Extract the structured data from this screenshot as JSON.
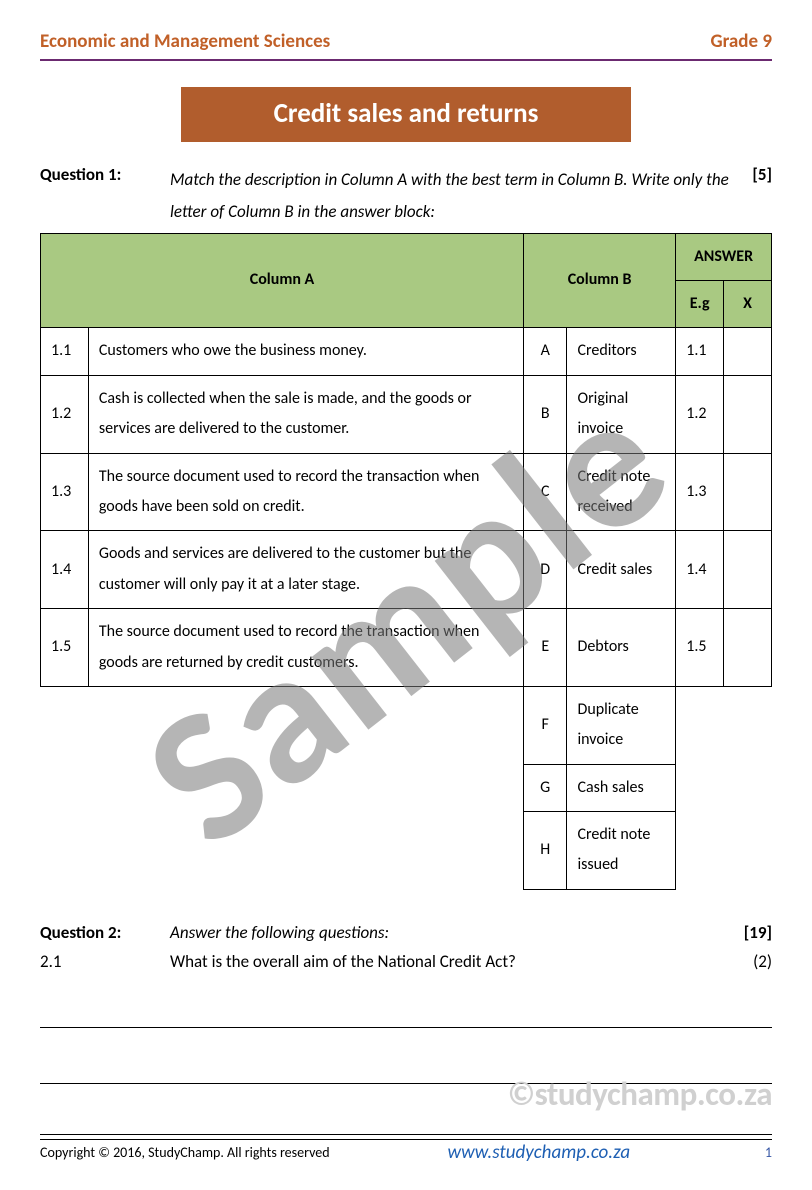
{
  "header": {
    "subject": "Economic and Management Sciences",
    "grade": "Grade 9"
  },
  "title": "Credit sales and returns",
  "question1": {
    "label": "Question 1:",
    "instruction": "Match the description in Column A with the best term in Column B. Write only the letter of Column B in the answer block:",
    "marks": "[5]",
    "header_colA": "Column A",
    "header_colB": "Column B",
    "header_answer": "ANSWER",
    "header_eg": "E.g",
    "header_eg_val": "X",
    "rows": [
      {
        "num": "1.1",
        "desc": "Customers who owe the business money.",
        "letter": "A",
        "term": "Creditors",
        "ans_a": "1.1",
        "ans_b": ""
      },
      {
        "num": "1.2",
        "desc": "Cash is collected when the sale is made, and the goods or services are delivered to the customer.",
        "letter": "B",
        "term": "Original invoice",
        "ans_a": "1.2",
        "ans_b": ""
      },
      {
        "num": "1.3",
        "desc": "The source document used to record the transaction when goods have been sold on credit.",
        "letter": "C",
        "term": "Credit note received",
        "ans_a": "1.3",
        "ans_b": ""
      },
      {
        "num": "1.4",
        "desc": "Goods and services are delivered to the customer but the customer will only pay it at a later stage.",
        "letter": "D",
        "term": "Credit sales",
        "ans_a": "1.4",
        "ans_b": ""
      },
      {
        "num": "1.5",
        "desc": "The source document used to record the transaction when goods are returned by credit customers.",
        "letter": "E",
        "term": "Debtors",
        "ans_a": "1.5",
        "ans_b": ""
      }
    ],
    "extra": [
      {
        "letter": "F",
        "term": "Duplicate invoice"
      },
      {
        "letter": "G",
        "term": "Cash sales"
      },
      {
        "letter": "H",
        "term": "Credit note issued"
      }
    ]
  },
  "question2": {
    "label": "Question 2:",
    "instruction": "Answer the following questions:",
    "marks": "[19]",
    "sub_num": "2.1",
    "sub_text": "What is the overall aim of the National Credit Act?",
    "sub_pts": "(2)"
  },
  "watermark_image": "©studychamp.co.za",
  "watermark_sample": "Sample",
  "footer": {
    "copyright": "Copyright © 2016, StudyChamp. All rights reserved",
    "url": "www.studychamp.co.za",
    "page": "1"
  },
  "colors": {
    "header_text": "#c16028",
    "rule": "#6b2a70",
    "title_bg": "#b15d2d",
    "table_header_bg": "#a9c982",
    "url": "#1e5fb3",
    "page_num": "#3656a5",
    "watermark": "#d0d0d0",
    "sample": "rgba(120,120,120,0.55)"
  }
}
